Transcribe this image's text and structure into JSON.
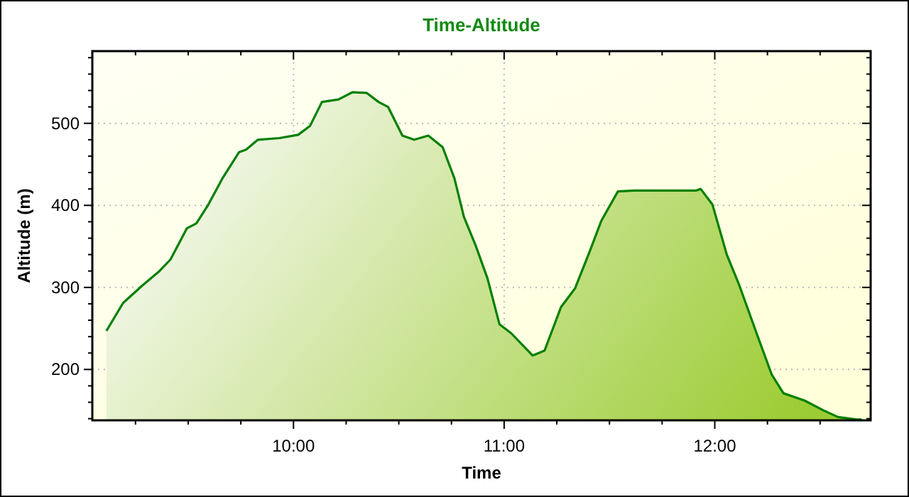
{
  "chart_data": {
    "type": "area",
    "title": "Time-Altitude",
    "xlabel": "Time",
    "ylabel": "Altitude (m)",
    "x": [
      9.112,
      9.191,
      9.281,
      9.36,
      9.416,
      9.494,
      9.539,
      9.596,
      9.663,
      9.742,
      9.775,
      9.831,
      9.933,
      10.022,
      10.079,
      10.135,
      10.213,
      10.281,
      10.348,
      10.404,
      10.449,
      10.517,
      10.573,
      10.64,
      10.708,
      10.764,
      10.809,
      10.865,
      10.921,
      10.978,
      11.034,
      11.135,
      11.192,
      11.27,
      11.337,
      11.405,
      11.461,
      11.54,
      11.618,
      11.91,
      11.933,
      11.989,
      12.057,
      12.113,
      12.203,
      12.27,
      12.326,
      12.427,
      12.517,
      12.585,
      12.675,
      12.697
    ],
    "series": [
      {
        "color": "#008000",
        "values": [
          247,
          281,
          302,
          319,
          334,
          372,
          378,
          401,
          433,
          465,
          468,
          480,
          482,
          486,
          497,
          526,
          529,
          538,
          537,
          526,
          520,
          485,
          480,
          485,
          471,
          433,
          386,
          351,
          311,
          255,
          244,
          217,
          223,
          276,
          299,
          343,
          381,
          417,
          418,
          418,
          420,
          401,
          340,
          305,
          241,
          194,
          171,
          162,
          150,
          142,
          139,
          139
        ]
      }
    ],
    "xlim": [
      9.045,
      12.74
    ],
    "xticks": [
      {
        "value": 9.25,
        "label": null
      },
      {
        "value": 9.5,
        "label": null
      },
      {
        "value": 9.75,
        "label": null
      },
      {
        "value": 10,
        "label": "10:00"
      },
      {
        "value": 10.25,
        "label": null
      },
      {
        "value": 10.5,
        "label": null
      },
      {
        "value": 10.75,
        "label": null
      },
      {
        "value": 11,
        "label": "11:00"
      },
      {
        "value": 11.25,
        "label": null
      },
      {
        "value": 11.5,
        "label": null
      },
      {
        "value": 11.75,
        "label": null
      },
      {
        "value": 12,
        "label": "12:00"
      },
      {
        "value": 12.25,
        "label": null
      },
      {
        "value": 12.5,
        "label": null
      }
    ],
    "ylim": [
      138,
      588
    ],
    "yticks": [
      {
        "value": 140,
        "label": null
      },
      {
        "value": 160,
        "label": null
      },
      {
        "value": 180,
        "label": null
      },
      200,
      {
        "value": 220,
        "label": null
      },
      {
        "value": 240,
        "label": null
      },
      {
        "value": 260,
        "label": null
      },
      {
        "value": 280,
        "label": null
      },
      300,
      {
        "value": 320,
        "label": null
      },
      {
        "value": 340,
        "label": null
      },
      {
        "value": 360,
        "label": null
      },
      {
        "value": 380,
        "label": null
      },
      400,
      {
        "value": 420,
        "label": null
      },
      {
        "value": 440,
        "label": null
      },
      {
        "value": 460,
        "label": null
      },
      {
        "value": 480,
        "label": null
      },
      500,
      {
        "value": 520,
        "label": null
      },
      {
        "value": 540,
        "label": null
      },
      {
        "value": 560,
        "label": null
      },
      {
        "value": 580,
        "label": null
      }
    ],
    "grid": true
  }
}
